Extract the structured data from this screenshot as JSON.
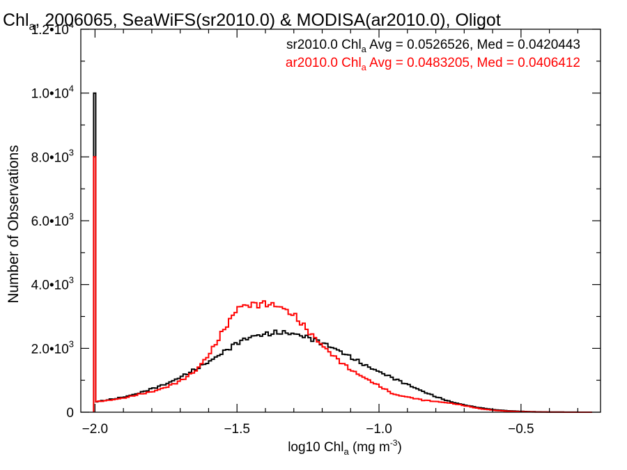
{
  "colors": {
    "series_1": "#000000",
    "series_2": "#ff0000",
    "axis": "#000000",
    "background": "#ffffff"
  },
  "chart_data": {
    "type": "line",
    "step": true,
    "title": {
      "main": "Chl",
      "sub": "a",
      "rest": ", 2006065, SeaWiFS(sr2010.0) & MODISA(ar2010.0), Oligot"
    },
    "xlabel": {
      "main": "log10 Chl",
      "sub": "a",
      "rest": " (mg m",
      "sup": "-3",
      "close": ")"
    },
    "ylabel": "Number of Observations",
    "xlim": [
      -2.05,
      -0.22
    ],
    "ylim": [
      0,
      12000
    ],
    "x_ticks": [
      {
        "value": -2.0,
        "label": "−2.0"
      },
      {
        "value": -1.5,
        "label": "−1.5"
      },
      {
        "value": -1.0,
        "label": "−1.0"
      },
      {
        "value": -0.5,
        "label": "−0.5"
      }
    ],
    "y_ticks": [
      {
        "value": 0,
        "mant": "0",
        "exp": ""
      },
      {
        "value": 2000,
        "mant": "2.0•10",
        "exp": "3"
      },
      {
        "value": 4000,
        "mant": "4.0•10",
        "exp": "3"
      },
      {
        "value": 6000,
        "mant": "6.0•10",
        "exp": "3"
      },
      {
        "value": 8000,
        "mant": "8.0•10",
        "exp": "3"
      },
      {
        "value": 10000,
        "mant": "1.0•10",
        "exp": "4"
      },
      {
        "value": 12000,
        "mant": "1.2•10",
        "exp": "4"
      }
    ],
    "legend_placement": "top-right",
    "annotations": [
      {
        "pre": "sr2010.0 Chl",
        "sub": "a",
        "post": " Avg = 0.0526526, Med = 0.0420443",
        "color": "#000000"
      },
      {
        "pre": "ar2010.0 Chl",
        "sub": "a",
        "post": " Avg = 0.0483205, Med = 0.0406412",
        "color": "#ff0000"
      }
    ],
    "series": [
      {
        "name": "sr2010.0",
        "color": "#000000",
        "spike": {
          "x": -2.0,
          "value": 10000
        },
        "x": [
          -2.0,
          -1.95,
          -1.9,
          -1.85,
          -1.8,
          -1.75,
          -1.7,
          -1.65,
          -1.6,
          -1.55,
          -1.5,
          -1.45,
          -1.4,
          -1.35,
          -1.3,
          -1.25,
          -1.2,
          -1.15,
          -1.1,
          -1.05,
          -1.0,
          -0.95,
          -0.9,
          -0.85,
          -0.8,
          -0.75,
          -0.7,
          -0.65,
          -0.6,
          -0.55,
          -0.5,
          -0.45,
          -0.4,
          -0.35,
          -0.3,
          -0.25
        ],
        "values": [
          330,
          400,
          480,
          600,
          750,
          900,
          1120,
          1350,
          1600,
          1900,
          2200,
          2380,
          2450,
          2500,
          2450,
          2330,
          2150,
          1950,
          1700,
          1450,
          1250,
          1050,
          850,
          650,
          470,
          320,
          220,
          140,
          80,
          45,
          25,
          12,
          6,
          3,
          1,
          0
        ]
      },
      {
        "name": "ar2010.0",
        "color": "#ff0000",
        "spike": {
          "x": -2.0,
          "value": 8000
        },
        "x": [
          -2.0,
          -1.95,
          -1.9,
          -1.85,
          -1.8,
          -1.75,
          -1.7,
          -1.65,
          -1.6,
          -1.55,
          -1.5,
          -1.45,
          -1.4,
          -1.35,
          -1.3,
          -1.25,
          -1.2,
          -1.15,
          -1.1,
          -1.05,
          -1.0,
          -0.95,
          -0.9,
          -0.85,
          -0.8,
          -0.75,
          -0.7,
          -0.65,
          -0.6,
          -0.55,
          -0.5,
          -0.45,
          -0.4,
          -0.35,
          -0.3,
          -0.25
        ],
        "values": [
          330,
          380,
          450,
          560,
          650,
          800,
          1000,
          1300,
          1850,
          2600,
          3300,
          3380,
          3400,
          3300,
          3000,
          2500,
          2050,
          1650,
          1300,
          1050,
          800,
          550,
          470,
          380,
          330,
          280,
          200,
          110,
          60,
          30,
          15,
          7,
          3,
          1,
          0,
          0
        ]
      }
    ]
  }
}
